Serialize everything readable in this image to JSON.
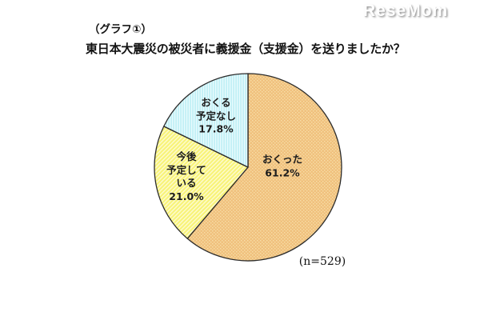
{
  "logo": {
    "text": "ReseMom"
  },
  "header": {
    "tag": "（グラフ①）",
    "question": "東日本大震災の被災者に義援金（支援金）を送りましたか？"
  },
  "chart_data": {
    "type": "pie",
    "title": "東日本大震災の被災者に義援金（支援金）を送りましたか？",
    "sample_size_label": "(n=529)",
    "n": 529,
    "start_angle": "12-oclock",
    "direction": "clockwise",
    "outline_color": "#2b2b2b",
    "label_color": "#1c1c1c",
    "slices": [
      {
        "id": "okutta",
        "label": "おくった",
        "value": 61.2,
        "display": "おくった\n61.2%",
        "color": "#F0C17E",
        "accent": "#F8DFA8",
        "pattern": "checker"
      },
      {
        "id": "kongo-yotei-shiteiru",
        "label": "今後予定している",
        "value": 21.0,
        "display": "今後\n予定して\nいる\n21.0%",
        "color": "#F8F378",
        "accent": "#FDFBD0",
        "pattern": "diagonal"
      },
      {
        "id": "okuru-yotei-nashi",
        "label": "おくる予定なし",
        "value": 17.8,
        "display": "おくる\n予定なし\n17.8%",
        "color": "#C2F0F6",
        "accent": "#E9FBFD",
        "pattern": "vstripe"
      }
    ]
  }
}
